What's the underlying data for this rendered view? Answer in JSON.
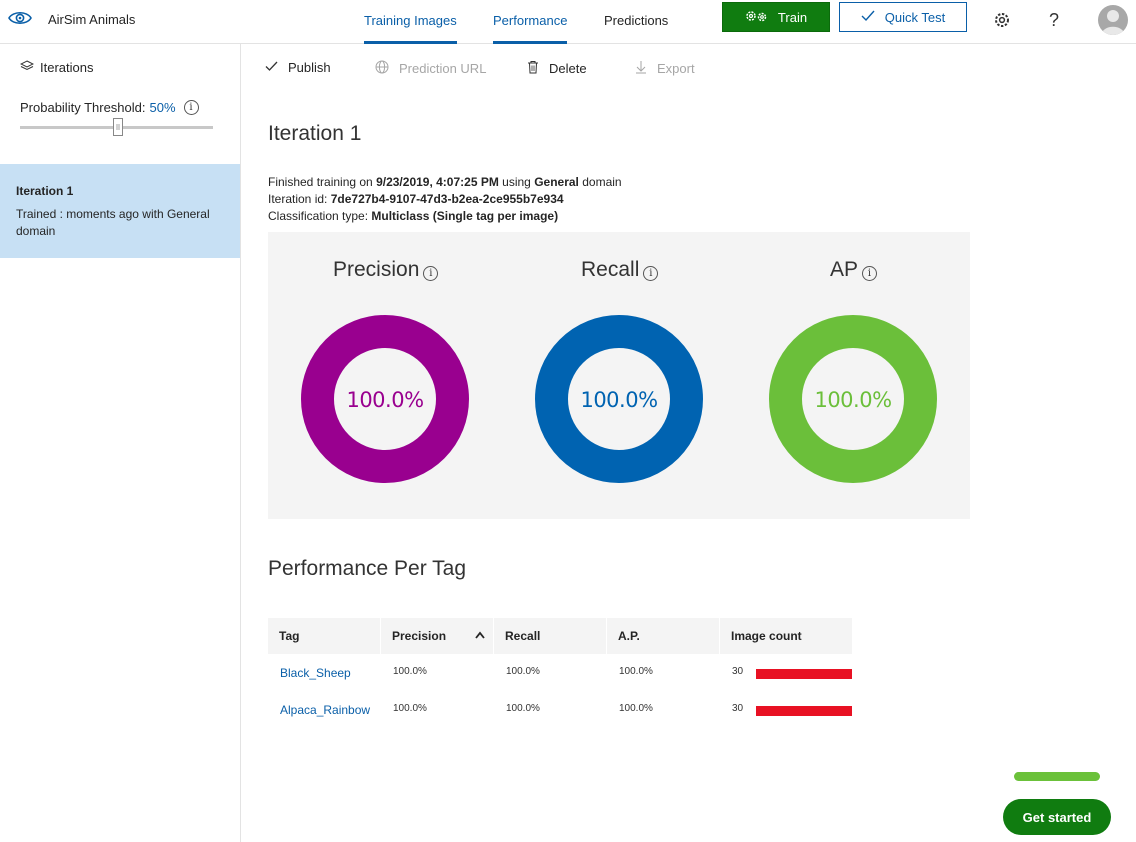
{
  "app": {
    "name": "AirSim Animals"
  },
  "nav": {
    "tabs": [
      {
        "label": "Training Images"
      },
      {
        "label": "Performance"
      },
      {
        "label": "Predictions"
      }
    ]
  },
  "header": {
    "train_label": "Train",
    "quick_test_label": "Quick Test",
    "help_label": "?"
  },
  "sidebar": {
    "iterations_label": "Iterations",
    "threshold_label": "Probability Threshold:",
    "threshold_value": "50%",
    "threshold_level": 0.5,
    "iteration_card": {
      "title": "Iteration 1",
      "subtitle": "Trained : moments ago with General domain"
    }
  },
  "toolbar": {
    "publish": "Publish",
    "prediction_url": "Prediction URL",
    "delete": "Delete",
    "export": "Export"
  },
  "iteration": {
    "heading": "Iteration 1",
    "finished_prefix": "Finished training on",
    "finished_date": "9/23/2019, 4:07:25 PM",
    "using": "using",
    "domain": "General",
    "domain_suffix": "domain",
    "id_label": "Iteration id:",
    "id_value": "7de727b4-9107-47d3-b2ea-2ce955b7e934",
    "class_label": "Classification type:",
    "class_value": "Multiclass (Single tag per image)"
  },
  "metrics": [
    {
      "title": "Precision",
      "value": "100.0%",
      "fraction": 1.0,
      "color": "#99008f"
    },
    {
      "title": "Recall",
      "value": "100.0%",
      "fraction": 1.0,
      "color": "#0063b1"
    },
    {
      "title": "AP",
      "value": "100.0%",
      "fraction": 1.0,
      "color": "#6bbf3a"
    }
  ],
  "per_tag": {
    "heading": "Performance Per Tag",
    "columns": [
      "Tag",
      "Precision",
      "Recall",
      "A.P.",
      "Image count"
    ],
    "rows": [
      {
        "tag": "Black_Sheep",
        "precision": "100.0%",
        "recall": "100.0%",
        "ap": "100.0%",
        "count": "30"
      },
      {
        "tag": "Alpaca_Rainbow",
        "precision": "100.0%",
        "recall": "100.0%",
        "ap": "100.0%",
        "count": "30"
      }
    ],
    "bar_color": "#e81123"
  },
  "get_started_label": "Get started"
}
